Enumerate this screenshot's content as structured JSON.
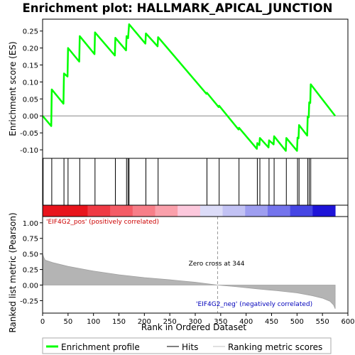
{
  "chart_data": {
    "type": "line",
    "title": "Enrichment plot: HALLMARK_APICAL_JUNCTION",
    "xlabel": "Rank in Ordered Dataset",
    "ylabel_top": "Enrichment score (ES)",
    "ylabel_bottom": "Ranked list metric (Pearson)",
    "xlim": [
      0,
      600
    ],
    "x_ticks": [
      "0",
      "50",
      "100",
      "150",
      "200",
      "250",
      "300",
      "350",
      "400",
      "450",
      "500",
      "550",
      "600"
    ],
    "es_ylim": [
      -0.125,
      0.285
    ],
    "es_ticks": [
      "-0.10",
      "-0.05",
      "0.00",
      "0.05",
      "0.10",
      "0.15",
      "0.20",
      "0.25"
    ],
    "metric_ylim": [
      -0.45,
      1.1
    ],
    "metric_ticks": [
      "-0.25",
      "0.00",
      "0.25",
      "0.50",
      "0.75",
      "1.00"
    ],
    "hits": [
      1,
      18,
      42,
      50,
      73,
      103,
      143,
      165,
      168,
      170,
      203,
      227,
      323,
      347,
      386,
      422,
      427,
      445,
      455,
      479,
      501,
      504,
      521,
      524,
      527
    ],
    "enrichment_profile": [
      [
        0,
        0.0
      ],
      [
        17,
        -0.03
      ],
      [
        18,
        0.078
      ],
      [
        41,
        0.036
      ],
      [
        42,
        0.125
      ],
      [
        49,
        0.116
      ],
      [
        50,
        0.2
      ],
      [
        72,
        0.16
      ],
      [
        73,
        0.235
      ],
      [
        102,
        0.182
      ],
      [
        103,
        0.246
      ],
      [
        142,
        0.178
      ],
      [
        143,
        0.23
      ],
      [
        164,
        0.193
      ],
      [
        165,
        0.235
      ],
      [
        168,
        0.229
      ],
      [
        170,
        0.27
      ],
      [
        202,
        0.213
      ],
      [
        203,
        0.243
      ],
      [
        226,
        0.205
      ],
      [
        227,
        0.232
      ],
      [
        322,
        0.065
      ],
      [
        323,
        0.068
      ],
      [
        346,
        0.026
      ],
      [
        347,
        0.03
      ],
      [
        385,
        -0.04
      ],
      [
        386,
        -0.035
      ],
      [
        421,
        -0.097
      ],
      [
        422,
        -0.08
      ],
      [
        426,
        -0.086
      ],
      [
        427,
        -0.065
      ],
      [
        444,
        -0.093
      ],
      [
        445,
        -0.072
      ],
      [
        454,
        -0.084
      ],
      [
        455,
        -0.06
      ],
      [
        478,
        -0.103
      ],
      [
        479,
        -0.065
      ],
      [
        500,
        -0.103
      ],
      [
        501,
        -0.064
      ],
      [
        503,
        -0.066
      ],
      [
        504,
        -0.027
      ],
      [
        520,
        -0.058
      ],
      [
        521,
        -0.002
      ],
      [
        523,
        -0.004
      ],
      [
        524,
        0.04
      ],
      [
        526,
        0.038
      ],
      [
        527,
        0.093
      ],
      [
        575,
        0.0
      ]
    ],
    "metric_curve": [
      [
        0,
        0.5
      ],
      [
        2,
        0.45
      ],
      [
        5,
        0.4
      ],
      [
        20,
        0.36
      ],
      [
        50,
        0.3
      ],
      [
        100,
        0.225
      ],
      [
        150,
        0.165
      ],
      [
        200,
        0.12
      ],
      [
        250,
        0.085
      ],
      [
        300,
        0.045
      ],
      [
        344,
        0.0
      ],
      [
        380,
        -0.025
      ],
      [
        420,
        -0.06
      ],
      [
        460,
        -0.09
      ],
      [
        500,
        -0.125
      ],
      [
        530,
        -0.17
      ],
      [
        550,
        -0.21
      ],
      [
        565,
        -0.26
      ],
      [
        572,
        -0.32
      ],
      [
        575,
        -0.38
      ]
    ],
    "rank_bar_colors": [
      "#e8141c",
      "#e8141c",
      "#ef3a44",
      "#f45c66",
      "#f77e88",
      "#faa0ab",
      "#fcc8dc",
      "#dcdcf8",
      "#c2c2f4",
      "#9e9ef0",
      "#7474ec",
      "#4646e4",
      "#1e14d8"
    ],
    "zero_cross_label": "Zero cross at 344",
    "zero_cross_x": 344,
    "pos_label": "'EIF4G2_pos' (positively correlated)",
    "neg_label": "'EIF4G2_neg' (negatively correlated)",
    "profile_color": "#00ff00",
    "pos_color": "#cc0000",
    "neg_color": "#0000bb",
    "legend": {
      "enrichment": "Enrichment profile",
      "hits": "Hits",
      "ranking": "Ranking metric scores"
    }
  }
}
